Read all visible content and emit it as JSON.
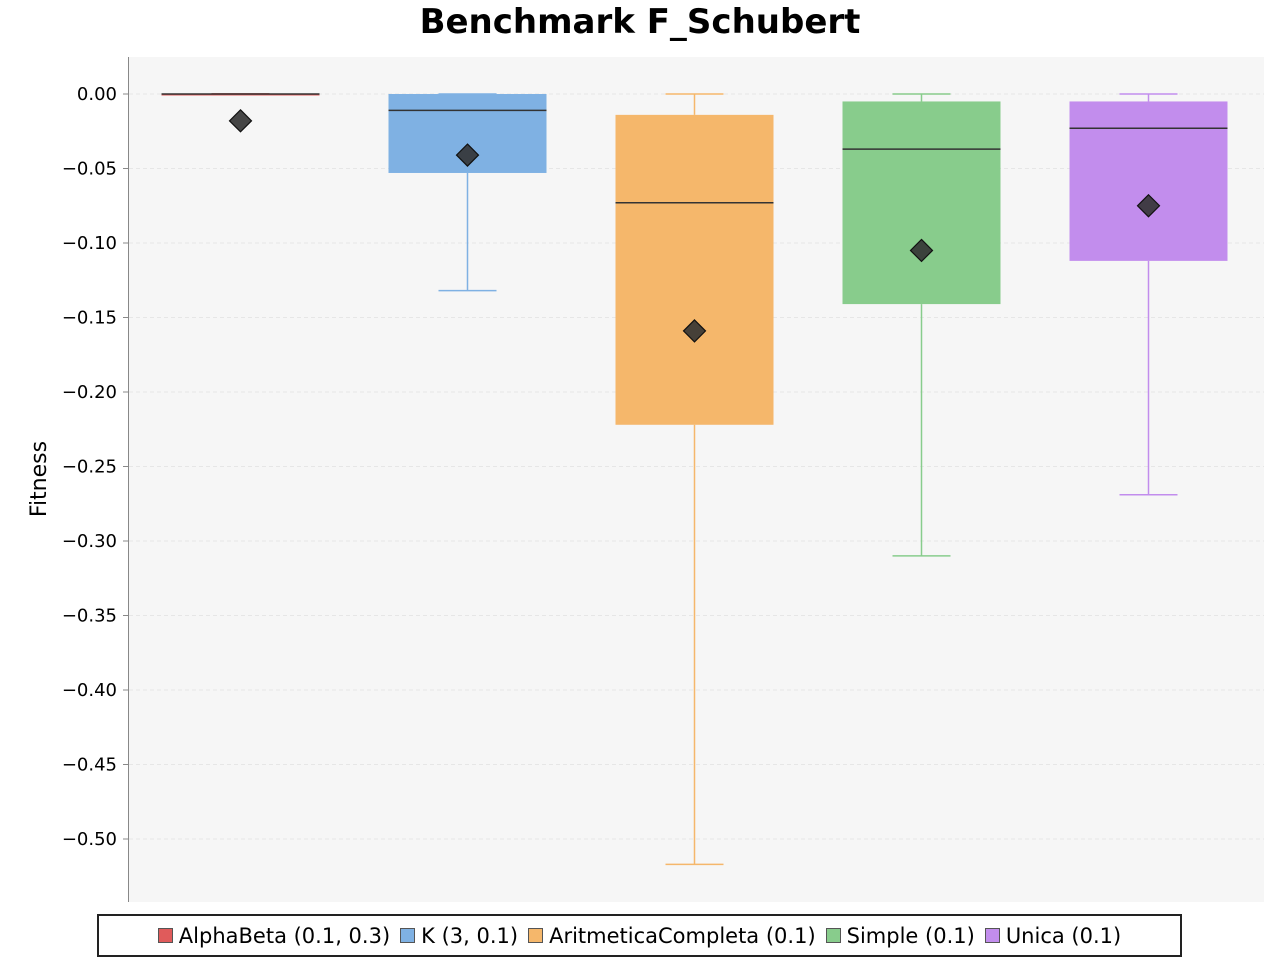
{
  "chart_data": {
    "type": "boxplot",
    "title": "Benchmark F_Schubert",
    "xlabel": "",
    "ylabel": "Fitness",
    "ylim": [
      -0.54,
      0.025
    ],
    "yticks": [
      0.0,
      -0.05,
      -0.1,
      -0.15,
      -0.2,
      -0.25,
      -0.3,
      -0.35,
      -0.4,
      -0.45,
      -0.5
    ],
    "ytick_labels": [
      "0.00",
      "−0.05",
      "−0.10",
      "−0.15",
      "−0.20",
      "−0.25",
      "−0.30",
      "−0.35",
      "−0.40",
      "−0.45",
      "−0.50"
    ],
    "grid": true,
    "legend_position": "bottom",
    "series": [
      {
        "name": "AlphaBeta (0.1, 0.3)",
        "color": "#e05b5b",
        "whisker_low": 0.0,
        "q1": 0.0,
        "median": 0.0,
        "q3": 0.0,
        "whisker_high": 0.0,
        "mean": -0.018
      },
      {
        "name": "K (3, 0.1)",
        "color": "#7fb1e3",
        "whisker_low": -0.132,
        "q1": -0.053,
        "median": -0.011,
        "q3": 0.0,
        "whisker_high": 0.0,
        "mean": -0.041
      },
      {
        "name": "AritmeticaCompleta (0.1)",
        "color": "#f5b76b",
        "whisker_low": -0.517,
        "q1": -0.222,
        "median": -0.073,
        "q3": -0.014,
        "whisker_high": 0.0,
        "mean": -0.159
      },
      {
        "name": "Simple (0.1)",
        "color": "#88cc8c",
        "whisker_low": -0.31,
        "q1": -0.141,
        "median": -0.037,
        "q3": -0.005,
        "whisker_high": 0.0,
        "mean": -0.105
      },
      {
        "name": "Unica (0.1)",
        "color": "#c28ded",
        "whisker_low": -0.269,
        "q1": -0.112,
        "median": -0.023,
        "q3": -0.005,
        "whisker_high": 0.0,
        "mean": -0.075
      }
    ]
  }
}
